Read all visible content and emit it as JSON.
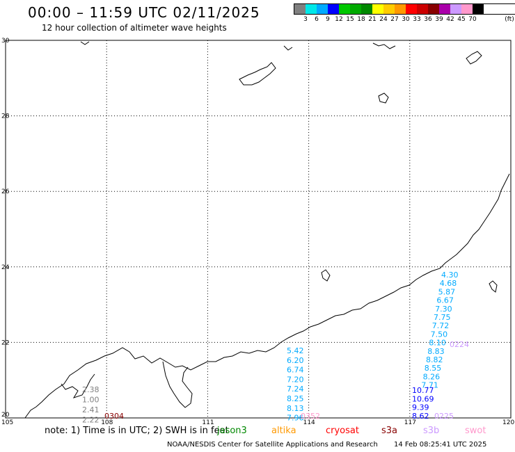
{
  "header": {
    "title": "00:00 – 11:59 UTC 02/11/2025",
    "subtitle": "12 hour collection of altimeter wave heights"
  },
  "legend": {
    "colors": [
      "#808080",
      "#00e8e8",
      "#00aaff",
      "#0000ff",
      "#00c800",
      "#00aa00",
      "#008800",
      "#ffff00",
      "#ffcc00",
      "#ff9900",
      "#ff0000",
      "#cc0000",
      "#880000",
      "#aa00aa",
      "#cc99ff",
      "#ff99cc",
      "#000000"
    ],
    "labels": [
      "3",
      "6",
      "9",
      "12",
      "15",
      "18",
      "21",
      "24",
      "27",
      "30",
      "33",
      "36",
      "39",
      "42",
      "45",
      "70"
    ],
    "unit": "(ft)"
  },
  "axes": {
    "x_ticks": [
      "105",
      "108",
      "111",
      "114",
      "117",
      "120"
    ],
    "y_ticks": [
      "30",
      "28",
      "26",
      "24",
      "22",
      "20"
    ]
  },
  "tracks": [
    {
      "name": "west",
      "values": [
        "2.38",
        "1.00",
        "2.41",
        "2.22"
      ],
      "time": "0304",
      "value_color": "#808080",
      "time_color": "#880000"
    },
    {
      "name": "middle",
      "values": [
        "5.42",
        "6.20",
        "6.74",
        "7.20",
        "7.24",
        "8.25",
        "8.13",
        "7.96"
      ],
      "time": "0352",
      "value_color": "#00aaff",
      "time_color": "#ff99cc"
    },
    {
      "name": "east-upper",
      "values": [
        "4.30",
        "4.68",
        "5.87",
        "6.67",
        "7.30",
        "7.75",
        "7.72",
        "7.50",
        "8.10",
        "8.83",
        "8.82",
        "8.55",
        "8.26",
        "7.71"
      ],
      "time": "0224",
      "value_color": "#00aaff",
      "time_color": "#cc99ff"
    },
    {
      "name": "east-lower",
      "values": [
        "10.77",
        "10.69",
        "9.39",
        "8.62"
      ],
      "time": "0225",
      "value_color": "#0000ff",
      "time_color": "#cc99ff"
    }
  ],
  "footer": {
    "note": "note: 1) Time is in UTC; 2) SWH is in feet",
    "satellites": [
      {
        "name": "jason3",
        "color": "#008800"
      },
      {
        "name": "altika",
        "color": "#ff9900"
      },
      {
        "name": "cryosat",
        "color": "#ff0000"
      },
      {
        "name": "s3a",
        "color": "#880000"
      },
      {
        "name": "s3b",
        "color": "#cc99ff"
      },
      {
        "name": "swot",
        "color": "#ff99cc"
      }
    ],
    "credit": "NOAA/NESDIS Center for Satellite Applications and Research",
    "stamp": "14 Feb 08:25:41 UTC 2025"
  }
}
